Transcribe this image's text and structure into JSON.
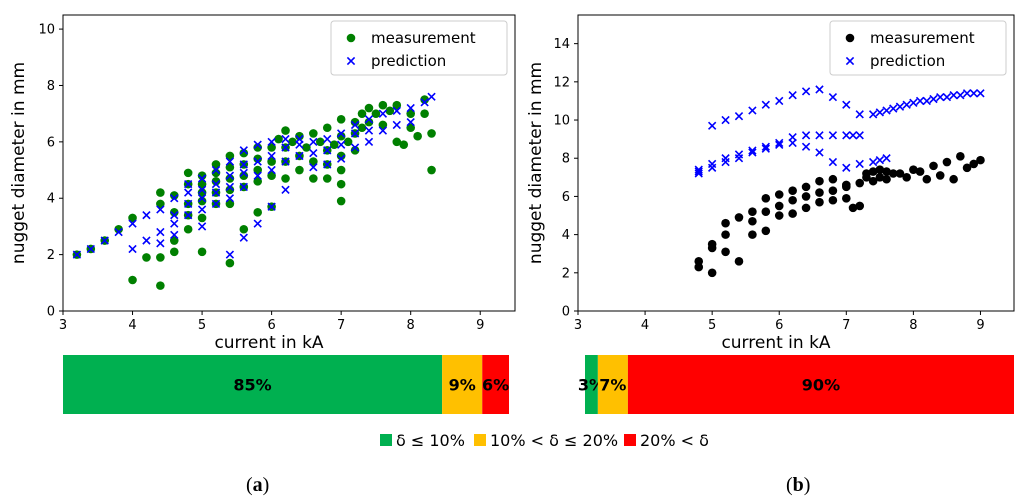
{
  "chart_data": [
    {
      "type": "scatter",
      "panel_label": "a",
      "xlabel": "current in kA",
      "ylabel": "nugget diameter in mm",
      "xlim": [
        3,
        9.5
      ],
      "ylim": [
        0,
        10.5
      ],
      "xticks": [
        "3",
        "4",
        "5",
        "6",
        "7",
        "8",
        "9"
      ],
      "yticks": [
        "0",
        "2",
        "4",
        "6",
        "8",
        "10"
      ],
      "legend_position": "top-right",
      "grid": false,
      "series": [
        {
          "name": "measurement",
          "marker": "circle",
          "color": "#008000",
          "x": [
            3.2,
            3.4,
            3.6,
            3.8,
            4.0,
            4.0,
            4.2,
            4.4,
            4.4,
            4.4,
            4.4,
            4.6,
            4.6,
            4.6,
            4.6,
            4.8,
            4.8,
            4.8,
            4.8,
            4.8,
            5.0,
            5.0,
            5.0,
            5.0,
            5.0,
            5.0,
            5.2,
            5.2,
            5.2,
            5.2,
            5.2,
            5.4,
            5.4,
            5.4,
            5.4,
            5.4,
            5.4,
            5.6,
            5.6,
            5.6,
            5.6,
            5.6,
            5.8,
            5.8,
            5.8,
            5.8,
            5.8,
            6.0,
            6.0,
            6.0,
            6.0,
            6.1,
            6.2,
            6.2,
            6.2,
            6.2,
            6.3,
            6.4,
            6.4,
            6.4,
            6.5,
            6.6,
            6.6,
            6.6,
            6.7,
            6.8,
            6.8,
            6.8,
            6.8,
            6.9,
            7.0,
            7.0,
            7.0,
            7.0,
            7.0,
            7.0,
            7.1,
            7.2,
            7.2,
            7.2,
            7.3,
            7.3,
            7.4,
            7.4,
            7.5,
            7.6,
            7.6,
            7.7,
            7.8,
            7.8,
            7.9,
            8.0,
            8.0,
            8.1,
            8.2,
            8.2,
            8.3,
            8.3
          ],
          "y": [
            2.0,
            2.2,
            2.5,
            2.9,
            1.1,
            3.3,
            1.9,
            0.9,
            1.9,
            3.8,
            4.2,
            2.1,
            2.5,
            3.5,
            4.1,
            2.9,
            3.4,
            3.8,
            4.5,
            4.9,
            2.1,
            3.3,
            3.9,
            4.2,
            4.5,
            4.8,
            3.8,
            4.2,
            4.6,
            4.9,
            5.2,
            1.7,
            3.8,
            4.3,
            4.7,
            5.1,
            5.5,
            2.9,
            4.4,
            4.8,
            5.2,
            5.6,
            3.5,
            4.6,
            5.0,
            5.4,
            5.8,
            3.7,
            4.8,
            5.3,
            5.8,
            6.1,
            4.7,
            5.3,
            5.8,
            6.4,
            6.0,
            5.0,
            5.5,
            6.2,
            5.8,
            4.7,
            5.3,
            6.3,
            6.0,
            4.7,
            5.2,
            5.7,
            6.5,
            5.9,
            3.9,
            4.5,
            5.0,
            5.5,
            6.2,
            6.8,
            6.0,
            5.7,
            6.3,
            6.7,
            6.5,
            7.0,
            6.7,
            7.2,
            7.0,
            6.6,
            7.3,
            7.1,
            6.0,
            7.3,
            5.9,
            6.5,
            7.0,
            6.2,
            7.0,
            7.5,
            5.0,
            6.3
          ]
        },
        {
          "name": "prediction",
          "marker": "x",
          "color": "#0000ff",
          "x": [
            3.2,
            3.4,
            3.6,
            3.8,
            4.0,
            4.0,
            4.2,
            4.2,
            4.4,
            4.4,
            4.4,
            4.6,
            4.6,
            4.6,
            4.6,
            4.8,
            4.8,
            4.8,
            4.8,
            5.0,
            5.0,
            5.0,
            5.0,
            5.0,
            5.2,
            5.2,
            5.2,
            5.2,
            5.4,
            5.4,
            5.4,
            5.4,
            5.4,
            5.6,
            5.6,
            5.6,
            5.6,
            5.6,
            5.8,
            5.8,
            5.8,
            5.8,
            6.0,
            6.0,
            6.0,
            6.0,
            6.2,
            6.2,
            6.2,
            6.2,
            6.4,
            6.4,
            6.4,
            6.6,
            6.6,
            6.6,
            6.8,
            6.8,
            6.8,
            7.0,
            7.0,
            7.0,
            7.2,
            7.2,
            7.2,
            7.4,
            7.4,
            7.4,
            7.6,
            7.6,
            7.8,
            7.8,
            8.0,
            8.0,
            8.2,
            8.3
          ],
          "y": [
            2.0,
            2.2,
            2.5,
            2.8,
            2.2,
            3.1,
            2.5,
            3.4,
            2.4,
            2.8,
            3.6,
            2.7,
            3.1,
            3.4,
            4.0,
            3.4,
            3.8,
            4.2,
            4.5,
            3.0,
            3.6,
            4.0,
            4.3,
            4.7,
            3.8,
            4.2,
            4.5,
            5.0,
            2.0,
            4.0,
            4.4,
            4.8,
            5.3,
            2.6,
            4.4,
            4.9,
            5.2,
            5.7,
            3.1,
            4.8,
            5.3,
            5.9,
            3.7,
            5.0,
            5.5,
            6.0,
            4.3,
            5.3,
            5.8,
            6.1,
            5.5,
            5.9,
            6.1,
            5.1,
            5.6,
            6.0,
            5.2,
            5.7,
            6.1,
            5.4,
            5.9,
            6.3,
            5.8,
            6.3,
            6.6,
            6.0,
            6.4,
            6.8,
            6.4,
            7.0,
            6.6,
            7.1,
            6.7,
            7.2,
            7.4,
            7.6
          ]
        }
      ],
      "error_bar": {
        "segments": [
          {
            "label": "85%",
            "value": 85,
            "color": "#00b050"
          },
          {
            "label": "9%",
            "value": 9,
            "color": "#ffc000"
          },
          {
            "label": "6%",
            "value": 6,
            "color": "#ff0000"
          }
        ]
      }
    },
    {
      "type": "scatter",
      "panel_label": "b",
      "xlabel": "current in kA",
      "ylabel": "nugget diameter in mm",
      "xlim": [
        3,
        9.5
      ],
      "ylim": [
        0,
        15.5
      ],
      "xticks": [
        "3",
        "4",
        "5",
        "6",
        "7",
        "8",
        "9"
      ],
      "yticks": [
        "0",
        "2",
        "4",
        "6",
        "8",
        "10",
        "12",
        "14"
      ],
      "legend_position": "top-right",
      "grid": false,
      "series": [
        {
          "name": "measurement",
          "marker": "circle",
          "color": "#000000",
          "x": [
            4.8,
            4.8,
            5.0,
            5.0,
            5.0,
            5.2,
            5.2,
            5.2,
            5.4,
            5.4,
            5.6,
            5.6,
            5.6,
            5.8,
            5.8,
            5.8,
            6.0,
            6.0,
            6.0,
            6.2,
            6.2,
            6.2,
            6.4,
            6.4,
            6.4,
            6.6,
            6.6,
            6.6,
            6.8,
            6.8,
            6.8,
            7.0,
            7.0,
            7.0,
            7.1,
            7.2,
            7.2,
            7.3,
            7.3,
            7.4,
            7.4,
            7.5,
            7.5,
            7.6,
            7.6,
            7.7,
            7.8,
            7.9,
            8.0,
            8.1,
            8.2,
            8.3,
            8.4,
            8.5,
            8.6,
            8.7,
            8.8,
            8.9,
            9.0
          ],
          "y": [
            2.3,
            2.6,
            2.0,
            3.3,
            3.5,
            3.1,
            4.0,
            4.6,
            2.6,
            4.9,
            4.0,
            4.7,
            5.2,
            4.2,
            5.2,
            5.9,
            5.0,
            5.5,
            6.1,
            5.1,
            5.8,
            6.3,
            5.4,
            6.0,
            6.5,
            5.7,
            6.2,
            6.8,
            5.8,
            6.3,
            6.9,
            5.9,
            6.5,
            6.6,
            5.4,
            5.5,
            6.7,
            7.0,
            7.2,
            6.8,
            7.3,
            7.0,
            7.4,
            6.9,
            7.3,
            7.2,
            7.2,
            7.0,
            7.4,
            7.3,
            6.9,
            7.6,
            7.1,
            7.8,
            6.9,
            8.1,
            7.5,
            7.7,
            7.9
          ]
        },
        {
          "name": "prediction",
          "marker": "x",
          "color": "#0000ff",
          "x": [
            4.8,
            5.0,
            5.2,
            5.4,
            5.6,
            5.8,
            6.0,
            6.2,
            6.4,
            6.6,
            6.8,
            7.0,
            7.2,
            4.8,
            5.0,
            5.2,
            5.4,
            5.6,
            5.8,
            6.0,
            6.2,
            6.4,
            6.6,
            6.8,
            7.0,
            7.1,
            7.2,
            4.8,
            5.0,
            5.2,
            5.4,
            5.6,
            5.8,
            6.0,
            6.2,
            6.4,
            6.6,
            6.8,
            7.0,
            7.2,
            7.4,
            7.5,
            7.6,
            7.4,
            7.5,
            7.6,
            7.7,
            7.8,
            7.9,
            8.0,
            8.1,
            8.2,
            8.3,
            8.4,
            8.5,
            8.6,
            8.7,
            8.8,
            8.9,
            9.0
          ],
          "y": [
            7.2,
            7.5,
            7.8,
            8.0,
            8.3,
            8.5,
            8.8,
            8.8,
            8.6,
            8.3,
            7.8,
            7.5,
            7.7,
            7.4,
            7.7,
            8.0,
            8.2,
            8.4,
            8.6,
            8.7,
            9.1,
            9.2,
            9.2,
            9.2,
            9.2,
            9.2,
            9.2,
            7.3,
            9.7,
            10.0,
            10.2,
            10.5,
            10.8,
            11.0,
            11.3,
            11.5,
            11.6,
            11.2,
            10.8,
            10.3,
            7.8,
            7.9,
            8.0,
            10.3,
            10.4,
            10.5,
            10.6,
            10.7,
            10.8,
            10.9,
            11.0,
            11.0,
            11.1,
            11.2,
            11.2,
            11.3,
            11.3,
            11.4,
            11.4,
            11.4
          ]
        }
      ],
      "error_bar": {
        "segments": [
          {
            "label": "3%",
            "value": 3,
            "color": "#00b050"
          },
          {
            "label": "7%",
            "value": 7,
            "color": "#ffc000"
          },
          {
            "label": "90%",
            "value": 90,
            "color": "#ff0000"
          }
        ]
      }
    }
  ],
  "bar_legend": {
    "items": [
      {
        "label": "δ ≤ 10%",
        "color": "#00b050"
      },
      {
        "label": "10% < δ ≤ 20%",
        "color": "#ffc000"
      },
      {
        "label": "20% < δ",
        "color": "#ff0000"
      }
    ]
  }
}
